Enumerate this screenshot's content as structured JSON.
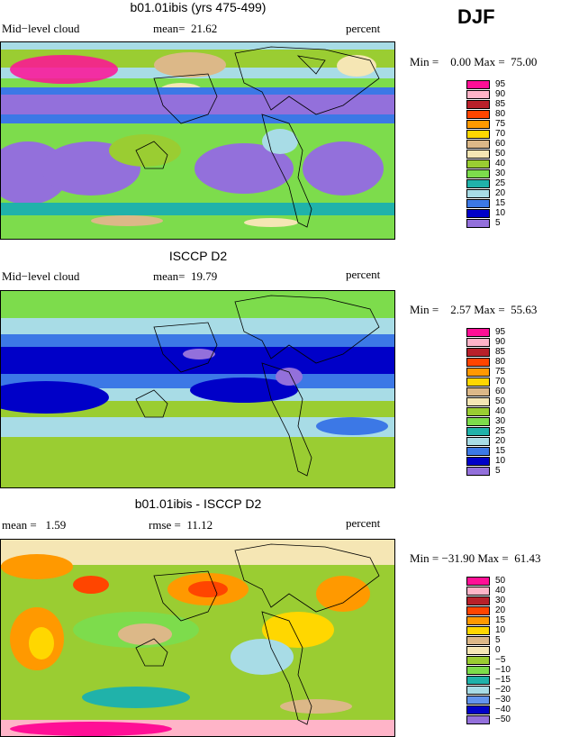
{
  "season": "DJF",
  "panels": [
    {
      "title": "b01.01ibis (yrs 475-499)",
      "left_label": "Mid−level cloud",
      "mid_label": "mean=  21.62",
      "units": "percent",
      "minmax": "Min =    0.00 Max =  75.00",
      "legend": {
        "labels": [
          "95",
          "90",
          "85",
          "80",
          "75",
          "70",
          "60",
          "50",
          "40",
          "30",
          "25",
          "20",
          "15",
          "10",
          "5"
        ],
        "colors": [
          "#ff0f96",
          "#ffb4c8",
          "#b8202a",
          "#ff4500",
          "#ff9900",
          "#ffd700",
          "#dcb888",
          "#f5e6b4",
          "#9acd32",
          "#7ddc4c",
          "#20b2aa",
          "#a8dce6",
          "#3c78e6",
          "#0000c8",
          "#9370db"
        ]
      }
    },
    {
      "title": "ISCCP D2",
      "left_label": "Mid−level cloud",
      "mid_label": "mean=  19.79",
      "units": "percent",
      "minmax": "Min =    2.57 Max =  55.63",
      "legend": {
        "labels": [
          "95",
          "90",
          "85",
          "80",
          "75",
          "70",
          "60",
          "50",
          "40",
          "30",
          "25",
          "20",
          "15",
          "10",
          "5"
        ],
        "colors": [
          "#ff0f96",
          "#ffb4c8",
          "#b8202a",
          "#ff4500",
          "#ff9900",
          "#ffd700",
          "#dcb888",
          "#f5e6b4",
          "#9acd32",
          "#7ddc4c",
          "#20b2aa",
          "#a8dce6",
          "#3c78e6",
          "#0000c8",
          "#9370db"
        ]
      }
    },
    {
      "title": "b01.01ibis - ISCCP D2",
      "left_label": "mean =   1.59",
      "mid_label": "rmse =  11.12",
      "units": "percent",
      "minmax": "Min = −31.90 Max =  61.43",
      "legend": {
        "labels": [
          "50",
          "40",
          "30",
          "20",
          "15",
          "10",
          "5",
          "0",
          "−5",
          "−10",
          "−15",
          "−20",
          "−30",
          "−40",
          "−50"
        ],
        "colors": [
          "#ff0f96",
          "#ffb4c8",
          "#b8202a",
          "#ff4500",
          "#ff9900",
          "#ffd700",
          "#dcb888",
          "#f5e6b4",
          "#9acd32",
          "#7ddc4c",
          "#20b2aa",
          "#a8dce6",
          "#6495ed",
          "#0000c8",
          "#9370db"
        ]
      }
    }
  ]
}
